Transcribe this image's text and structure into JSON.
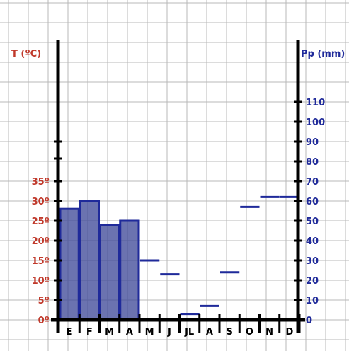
{
  "chart_data": {
    "type": "bar",
    "title": "",
    "categories": [
      "E",
      "F",
      "M",
      "A",
      "M",
      "J",
      "JL",
      "A",
      "S",
      "O",
      "N",
      "D"
    ],
    "series": [
      {
        "values": [
          28,
          30,
          24,
          25,
          0,
          0,
          0,
          0,
          0,
          0,
          0,
          0
        ]
      },
      {
        "values": [
          null,
          null,
          null,
          null,
          30,
          23,
          3,
          7,
          24,
          57,
          62,
          62
        ]
      }
    ],
    "left_axis": {
      "label": "T (ºC)",
      "ticks": [
        "0º",
        "5º",
        "10º",
        "15º",
        "20º",
        "25º",
        "30º",
        "35º"
      ],
      "ylim": [
        0,
        35
      ]
    },
    "right_axis": {
      "label": "Pp (mm)",
      "ticks": [
        "0",
        "10",
        "20",
        "30",
        "40",
        "50",
        "60",
        "70",
        "80",
        "90",
        "100",
        "110"
      ],
      "ylim": [
        0,
        110
      ]
    },
    "grid": true,
    "colors": {
      "temperature_text": "#c0392b",
      "precip": "#1f2a9a",
      "bar_fill": "#3a4496",
      "axis": "#000000"
    }
  }
}
